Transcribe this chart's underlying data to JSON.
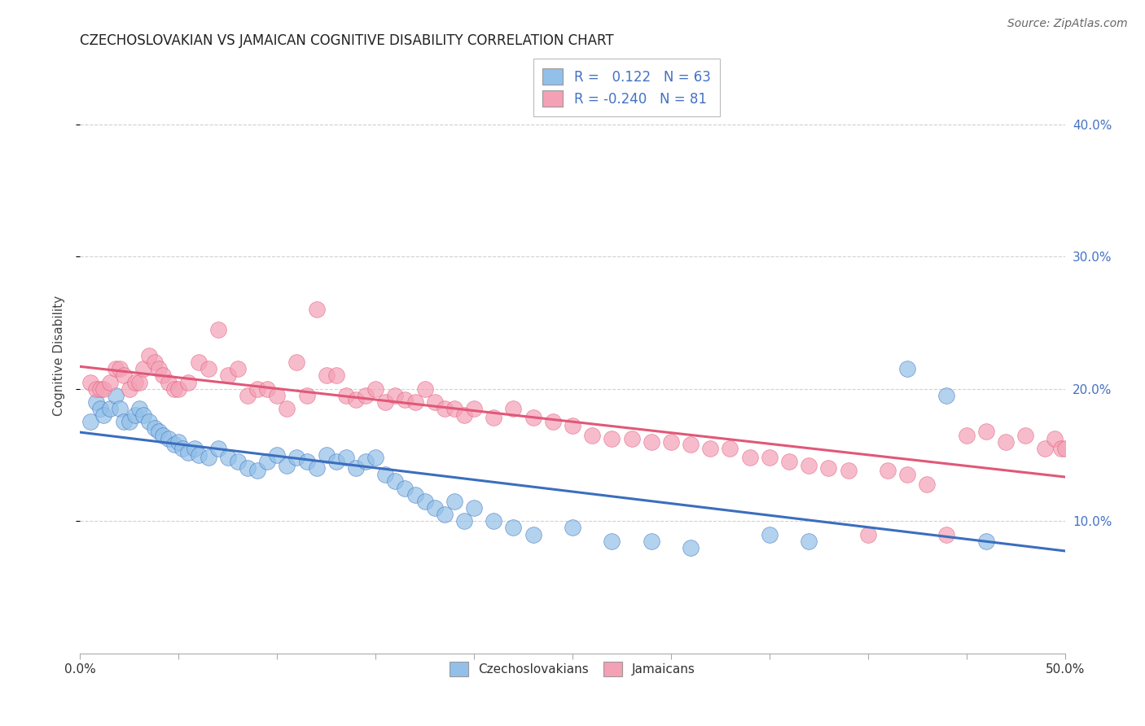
{
  "title": "CZECHOSLOVAKIAN VS JAMAICAN COGNITIVE DISABILITY CORRELATION CHART",
  "source": "Source: ZipAtlas.com",
  "ylabel": "Cognitive Disability",
  "xlim": [
    0.0,
    0.5
  ],
  "ylim": [
    0.0,
    0.45
  ],
  "xticks": [
    0.0,
    0.05,
    0.1,
    0.15,
    0.2,
    0.25,
    0.3,
    0.35,
    0.4,
    0.45,
    0.5
  ],
  "xticklabels": [
    "0.0%",
    "",
    "",
    "",
    "",
    "",
    "",
    "",
    "",
    "",
    "50.0%"
  ],
  "ytick_positions": [
    0.1,
    0.2,
    0.3,
    0.4
  ],
  "yticklabels_left": [
    "10.0%",
    "20.0%",
    "30.0%",
    "40.0%"
  ],
  "yticklabels_right": [
    "10.0%",
    "20.0%",
    "30.0%",
    "40.0%"
  ],
  "blue_R": 0.122,
  "blue_N": 63,
  "pink_R": -0.24,
  "pink_N": 81,
  "blue_color": "#92C0E8",
  "pink_color": "#F4A0B5",
  "blue_line_color": "#3B6EBE",
  "pink_line_color": "#E05878",
  "background_color": "#ffffff",
  "grid_color": "#cccccc",
  "tick_color": "#4472C4",
  "legend_label_blue": "Czechoslovakians",
  "legend_label_pink": "Jamaicans",
  "blue_scatter_x": [
    0.005,
    0.008,
    0.01,
    0.012,
    0.015,
    0.018,
    0.02,
    0.022,
    0.025,
    0.028,
    0.03,
    0.032,
    0.035,
    0.038,
    0.04,
    0.042,
    0.045,
    0.048,
    0.05,
    0.052,
    0.055,
    0.058,
    0.06,
    0.065,
    0.07,
    0.075,
    0.08,
    0.085,
    0.09,
    0.095,
    0.1,
    0.105,
    0.11,
    0.115,
    0.12,
    0.125,
    0.13,
    0.135,
    0.14,
    0.145,
    0.15,
    0.155,
    0.16,
    0.165,
    0.17,
    0.175,
    0.18,
    0.185,
    0.19,
    0.195,
    0.2,
    0.21,
    0.22,
    0.23,
    0.25,
    0.27,
    0.29,
    0.31,
    0.35,
    0.37,
    0.42,
    0.44,
    0.46
  ],
  "blue_scatter_y": [
    0.175,
    0.19,
    0.185,
    0.18,
    0.185,
    0.195,
    0.185,
    0.175,
    0.175,
    0.18,
    0.185,
    0.18,
    0.175,
    0.17,
    0.168,
    0.165,
    0.162,
    0.158,
    0.16,
    0.155,
    0.152,
    0.155,
    0.15,
    0.148,
    0.155,
    0.148,
    0.145,
    0.14,
    0.138,
    0.145,
    0.15,
    0.142,
    0.148,
    0.145,
    0.14,
    0.15,
    0.145,
    0.148,
    0.14,
    0.145,
    0.148,
    0.135,
    0.13,
    0.125,
    0.12,
    0.115,
    0.11,
    0.105,
    0.115,
    0.1,
    0.11,
    0.1,
    0.095,
    0.09,
    0.095,
    0.085,
    0.085,
    0.08,
    0.09,
    0.085,
    0.215,
    0.195,
    0.085
  ],
  "pink_scatter_x": [
    0.005,
    0.008,
    0.01,
    0.012,
    0.015,
    0.018,
    0.02,
    0.022,
    0.025,
    0.028,
    0.03,
    0.032,
    0.035,
    0.038,
    0.04,
    0.042,
    0.045,
    0.048,
    0.05,
    0.055,
    0.06,
    0.065,
    0.07,
    0.075,
    0.08,
    0.085,
    0.09,
    0.095,
    0.1,
    0.105,
    0.11,
    0.115,
    0.12,
    0.125,
    0.13,
    0.135,
    0.14,
    0.145,
    0.15,
    0.155,
    0.16,
    0.165,
    0.17,
    0.175,
    0.18,
    0.185,
    0.19,
    0.195,
    0.2,
    0.21,
    0.22,
    0.23,
    0.24,
    0.25,
    0.26,
    0.27,
    0.28,
    0.29,
    0.3,
    0.31,
    0.32,
    0.33,
    0.34,
    0.35,
    0.36,
    0.37,
    0.38,
    0.39,
    0.4,
    0.41,
    0.42,
    0.43,
    0.44,
    0.45,
    0.46,
    0.47,
    0.48,
    0.49,
    0.495,
    0.498,
    0.5
  ],
  "pink_scatter_y": [
    0.205,
    0.2,
    0.2,
    0.2,
    0.205,
    0.215,
    0.215,
    0.21,
    0.2,
    0.205,
    0.205,
    0.215,
    0.225,
    0.22,
    0.215,
    0.21,
    0.205,
    0.2,
    0.2,
    0.205,
    0.22,
    0.215,
    0.245,
    0.21,
    0.215,
    0.195,
    0.2,
    0.2,
    0.195,
    0.185,
    0.22,
    0.195,
    0.26,
    0.21,
    0.21,
    0.195,
    0.192,
    0.195,
    0.2,
    0.19,
    0.195,
    0.192,
    0.19,
    0.2,
    0.19,
    0.185,
    0.185,
    0.18,
    0.185,
    0.178,
    0.185,
    0.178,
    0.175,
    0.172,
    0.165,
    0.162,
    0.162,
    0.16,
    0.16,
    0.158,
    0.155,
    0.155,
    0.148,
    0.148,
    0.145,
    0.142,
    0.14,
    0.138,
    0.09,
    0.138,
    0.135,
    0.128,
    0.09,
    0.165,
    0.168,
    0.16,
    0.165,
    0.155,
    0.162,
    0.155,
    0.155
  ]
}
